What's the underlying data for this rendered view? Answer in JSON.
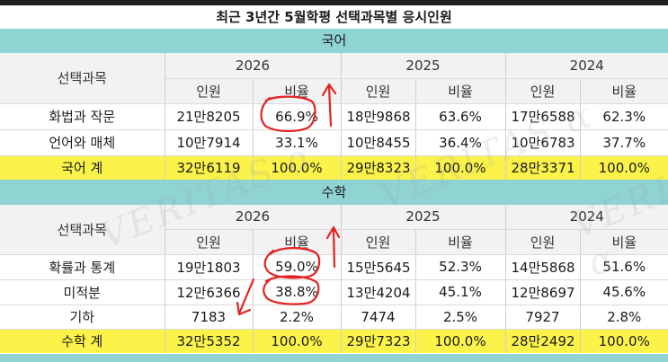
{
  "title": "최근 3년간 5월학평 선택과목별 응시인원",
  "watermark": "VERITAS α",
  "korean": {
    "section": "국어",
    "subject_header": "선택과목",
    "years": [
      "2026",
      "2025",
      "2024"
    ],
    "col_count": "인원",
    "col_ratio": "비율",
    "rows": [
      {
        "name": "화법과 작문",
        "cells": [
          "21만8205",
          "66.9%",
          "18만9868",
          "63.6%",
          "17만6588",
          "62.3%"
        ]
      },
      {
        "name": "언어와 매체",
        "cells": [
          "10만7914",
          "33.1%",
          "10만8455",
          "36.4%",
          "10만6783",
          "37.7%"
        ]
      }
    ],
    "total": {
      "name": "국어 계",
      "cells": [
        "32만6119",
        "100.0%",
        "29만8323",
        "100.0%",
        "28만3371",
        "100.0%"
      ]
    }
  },
  "math": {
    "section": "수학",
    "subject_header": "선택과목",
    "years": [
      "2026",
      "2025",
      "2024"
    ],
    "col_count": "인원",
    "col_ratio": "비율",
    "rows": [
      {
        "name": "확률과 통계",
        "cells": [
          "19만1803",
          "59.0%",
          "15만5645",
          "52.3%",
          "14만5868",
          "51.6%"
        ]
      },
      {
        "name": "미적분",
        "cells": [
          "12만6366",
          "38.8%",
          "13만4204",
          "45.1%",
          "12만8697",
          "45.6%"
        ]
      },
      {
        "name": "기하",
        "cells": [
          "7183",
          "2.2%",
          "7474",
          "2.5%",
          "7927",
          "2.8%"
        ]
      }
    ],
    "total": {
      "name": "수학 계",
      "cells": [
        "32만5352",
        "100.0%",
        "29만7323",
        "100.0%",
        "28만2492",
        "100.0%"
      ]
    }
  }
}
